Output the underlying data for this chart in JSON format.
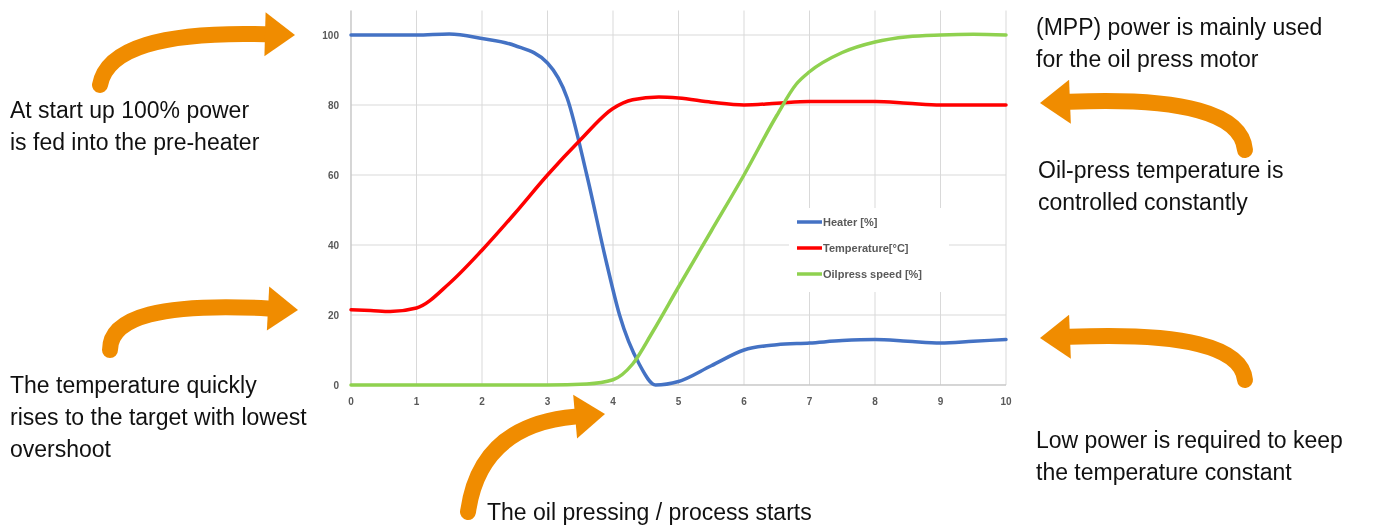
{
  "chart_data": {
    "type": "line",
    "xlim": [
      0,
      10
    ],
    "ylim": [
      0,
      107
    ],
    "xticks": [
      0,
      1,
      2,
      3,
      4,
      5,
      6,
      7,
      8,
      9,
      10
    ],
    "yticks": [
      0,
      20,
      40,
      60,
      80,
      100
    ],
    "grid": true,
    "legend": "right",
    "line_style": "solid",
    "marker": "none",
    "series": [
      {
        "name": "Heater [%]",
        "color": "#4472c4",
        "x": [
          0,
          1,
          1.5,
          2,
          2.5,
          3,
          3.3,
          3.6,
          3.9,
          4.1,
          4.4,
          4.65,
          5,
          5.5,
          6,
          6.5,
          7,
          7.5,
          8,
          8.5,
          9,
          9.5,
          10
        ],
        "values": [
          100,
          100,
          100.3,
          99,
          97,
          92,
          82,
          60,
          35,
          20,
          6,
          0,
          1,
          5.5,
          10,
          11.5,
          12,
          12.7,
          13,
          12.5,
          12,
          12.5,
          13
        ]
      },
      {
        "name": "Temperature[°C]",
        "color": "#ff0000",
        "x": [
          0,
          0.3,
          0.6,
          1,
          1.5,
          2,
          2.5,
          3,
          3.5,
          4,
          4.3,
          4.7,
          5,
          5.5,
          6,
          6.5,
          7,
          7.5,
          8,
          8.5,
          9,
          9.5,
          10
        ],
        "values": [
          21.5,
          21.3,
          21,
          22,
          29,
          38.5,
          49,
          60,
          70,
          79,
          81.5,
          82.3,
          82,
          80.8,
          80,
          80.5,
          81,
          81,
          81,
          80.5,
          80,
          80,
          80
        ]
      },
      {
        "name": "Oilpress speed [%]",
        "color": "#8fd14f",
        "x": [
          0,
          3,
          3.6,
          4,
          4.3,
          4.6,
          5,
          5.5,
          6,
          6.5,
          6.8,
          7,
          7.5,
          8,
          8.5,
          9,
          9.5,
          10
        ],
        "values": [
          0,
          0,
          0.3,
          1.5,
          6,
          15,
          28,
          44,
          60,
          77,
          86,
          89.5,
          95,
          98,
          99.5,
          100,
          100.2,
          100
        ]
      }
    ],
    "annotations": [
      "(MPP) power is mainly used\nfor the oil press motor",
      "At start up 100% power\nis fed into the pre-heater",
      "Oil-press temperature is\ncontrolled constantly",
      "The temperature quickly\nrises to the target with lowest\novershoot",
      "Low power is required to keep\nthe temperature constant",
      "The oil pressing / process starts"
    ]
  }
}
